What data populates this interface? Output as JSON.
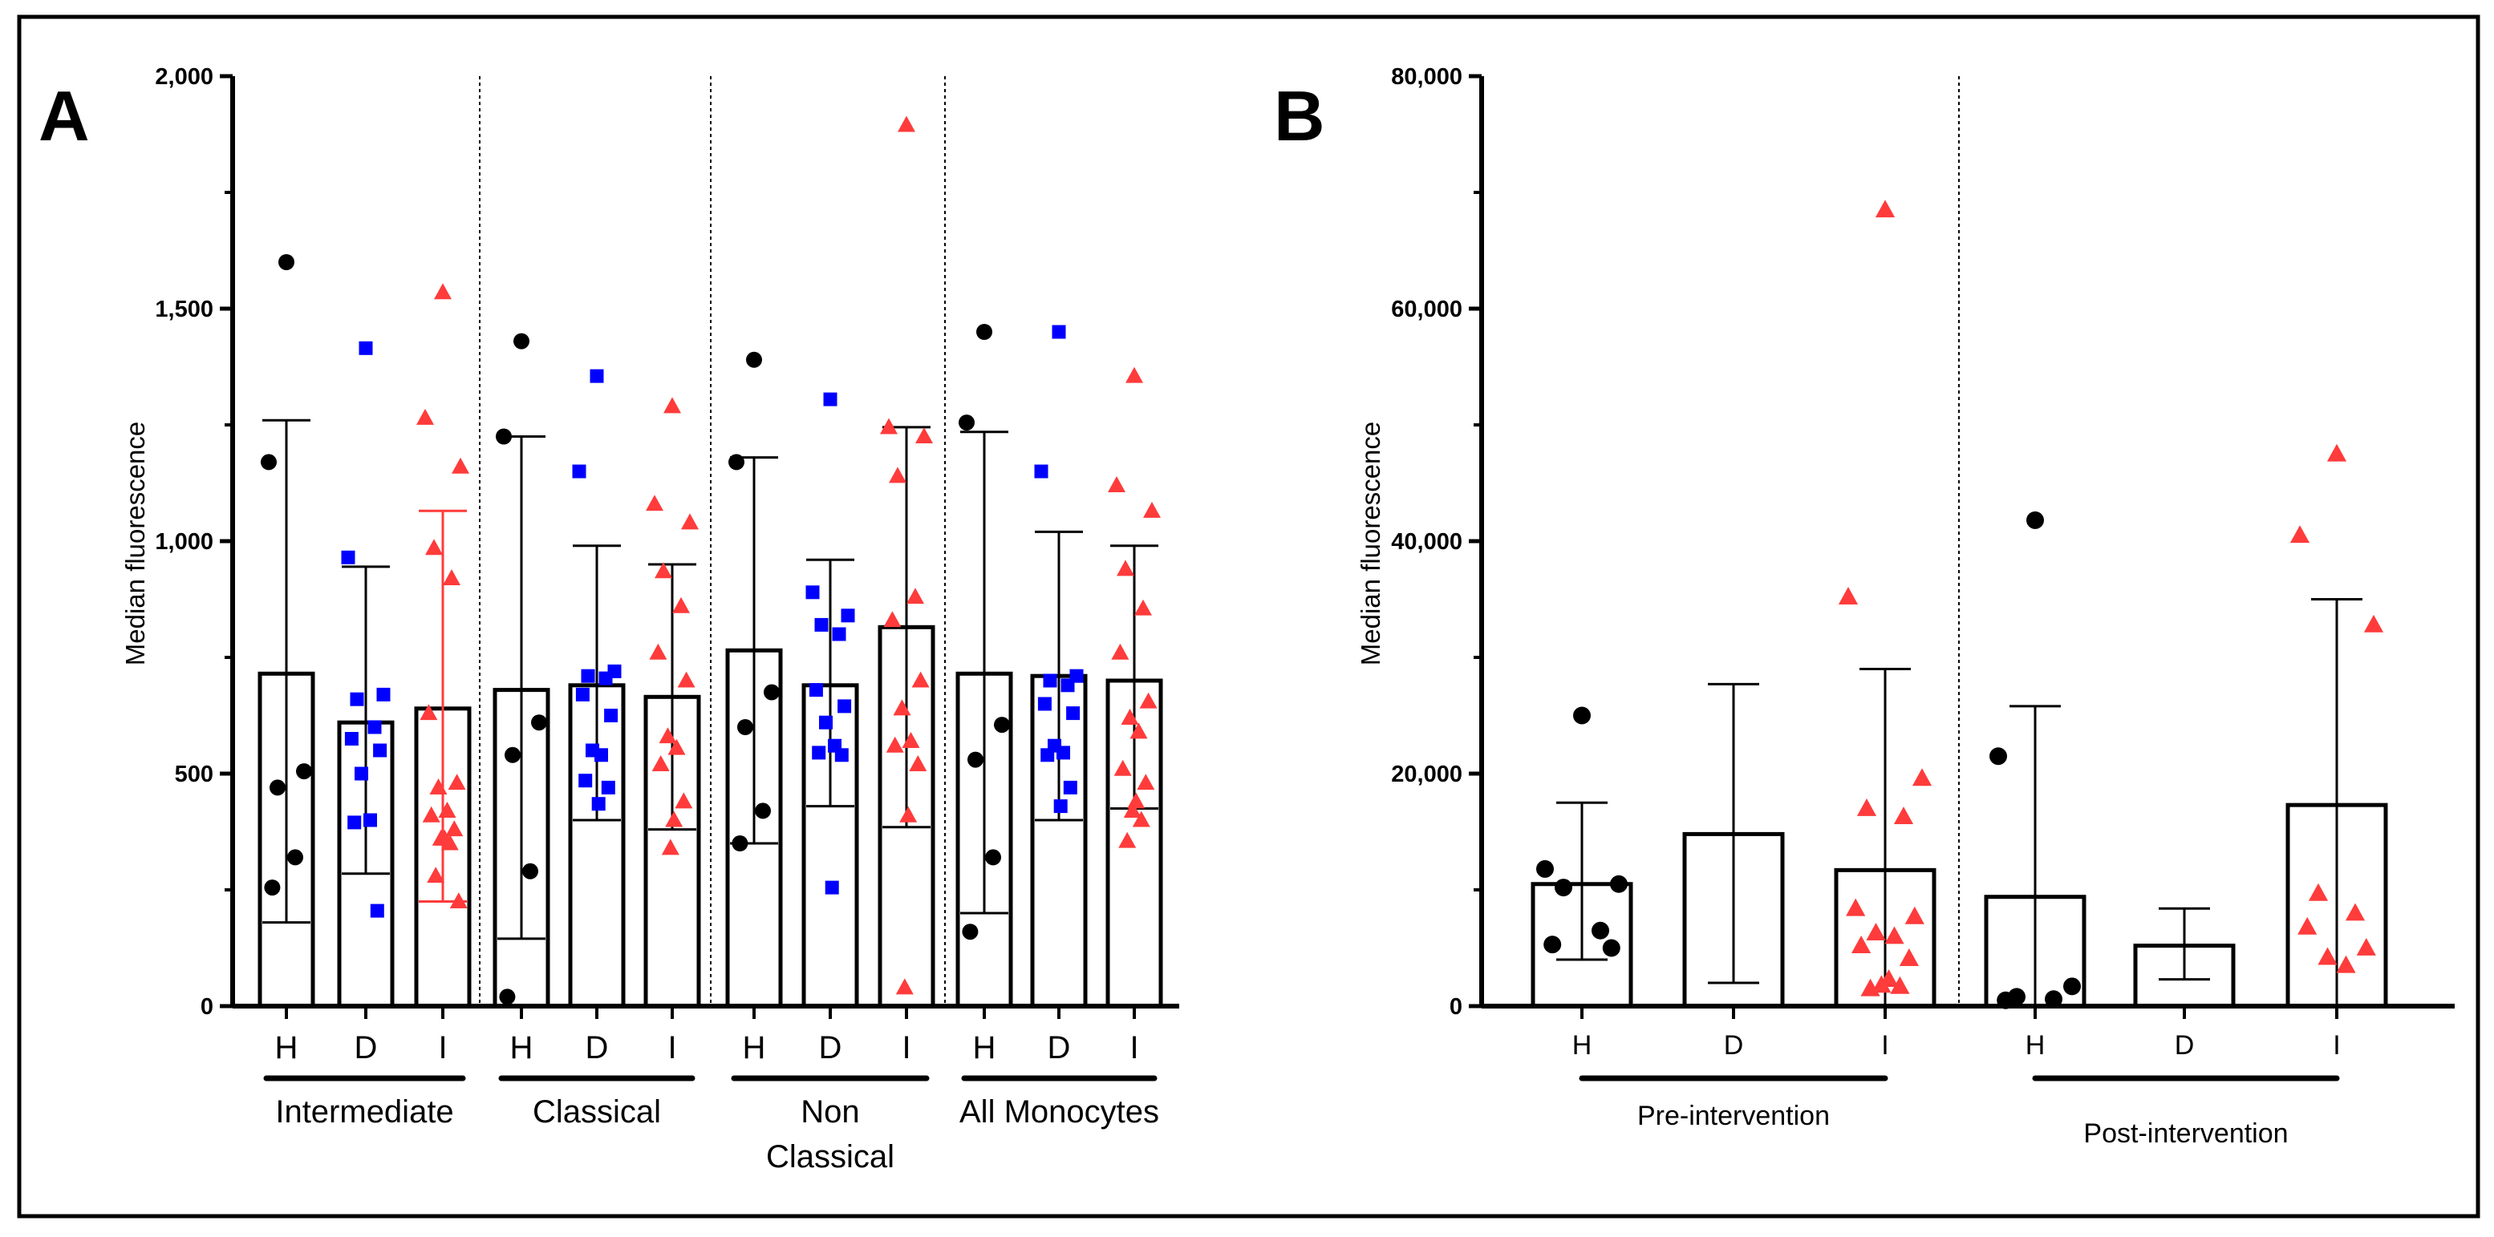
{
  "colors": {
    "H": "#000000",
    "D": "#0000ff",
    "I": "#ff3b3b",
    "axis": "#000000"
  },
  "chart_data": [
    {
      "panel": "A",
      "type": "bar",
      "title": "",
      "ylabel": "Median fluorescence",
      "ylim": [
        0,
        2000
      ],
      "yticks": [
        0,
        500,
        1000,
        1500,
        2000
      ],
      "ytick_labels": [
        "0",
        "500",
        "1,000",
        "1,500",
        "2,000"
      ],
      "groups": [
        {
          "label": "Intermediate",
          "label_lines": [
            "Intermediate"
          ],
          "bars": [
            {
              "cat": "H",
              "mean": 715,
              "lo": 180,
              "hi": 1260,
              "points": [
                1600,
                1170,
                505,
                470,
                320,
                255
              ]
            },
            {
              "cat": "D",
              "mean": 610,
              "lo": 285,
              "hi": 945,
              "points": [
                1415,
                965,
                670,
                660,
                600,
                575,
                550,
                500,
                400,
                395,
                205
              ]
            },
            {
              "cat": "I",
              "mean": 640,
              "lo": 225,
              "hi": 1065,
              "points": [
                1535,
                1265,
                1160,
                985,
                920,
                630,
                480,
                470,
                420,
                410,
                380,
                360,
                360,
                350,
                280,
                225
              ]
            }
          ]
        },
        {
          "label": "Classical",
          "label_lines": [
            "Classical"
          ],
          "bars": [
            {
              "cat": "H",
              "mean": 680,
              "lo": 145,
              "hi": 1225,
              "points": [
                1430,
                1225,
                610,
                540,
                290,
                20
              ]
            },
            {
              "cat": "D",
              "mean": 690,
              "lo": 400,
              "hi": 990,
              "points": [
                1355,
                1150,
                720,
                710,
                705,
                670,
                625,
                550,
                540,
                485,
                470,
                435
              ]
            },
            {
              "cat": "I",
              "mean": 665,
              "lo": 380,
              "hi": 950,
              "points": [
                1290,
                1080,
                1040,
                935,
                860,
                760,
                700,
                580,
                555,
                520,
                440,
                400,
                340
              ]
            }
          ]
        },
        {
          "label": "Non Classical",
          "label_lines": [
            "Non",
            "Classical"
          ],
          "bars": [
            {
              "cat": "H",
              "mean": 765,
              "lo": 350,
              "hi": 1180,
              "points": [
                1390,
                1170,
                675,
                600,
                420,
                350
              ]
            },
            {
              "cat": "D",
              "mean": 690,
              "lo": 430,
              "hi": 960,
              "points": [
                1305,
                890,
                840,
                820,
                800,
                680,
                645,
                610,
                560,
                545,
                540,
                255
              ]
            },
            {
              "cat": "I",
              "mean": 815,
              "lo": 385,
              "hi": 1245,
              "points": [
                1895,
                1245,
                1225,
                1140,
                880,
                830,
                700,
                640,
                570,
                560,
                520,
                410,
                40
              ]
            }
          ]
        },
        {
          "label": "All Monocytes",
          "label_lines": [
            "All Monocytes"
          ],
          "bars": [
            {
              "cat": "H",
              "mean": 715,
              "lo": 200,
              "hi": 1235,
              "points": [
                1450,
                1255,
                605,
                530,
                320,
                160
              ]
            },
            {
              "cat": "D",
              "mean": 710,
              "lo": 400,
              "hi": 1020,
              "points": [
                1450,
                1150,
                710,
                700,
                690,
                650,
                630,
                560,
                545,
                540,
                470,
                430
              ]
            },
            {
              "cat": "I",
              "mean": 700,
              "lo": 425,
              "hi": 990,
              "points": [
                1355,
                1120,
                1065,
                940,
                855,
                760,
                655,
                620,
                590,
                510,
                480,
                440,
                420,
                400,
                355
              ]
            }
          ]
        }
      ]
    },
    {
      "panel": "B",
      "type": "bar",
      "title": "",
      "ylabel": "Median fluorescence",
      "ylim": [
        0,
        80000
      ],
      "yticks": [
        0,
        20000,
        40000,
        60000,
        80000
      ],
      "ytick_labels": [
        "0",
        "20,000",
        "40,000",
        "60,000",
        "80,000"
      ],
      "groups": [
        {
          "label": "Pre-intervention",
          "label_lines": [
            "Pre-intervention"
          ],
          "bars": [
            {
              "cat": "H",
              "mean": 10500,
              "lo": 4000,
              "hi": 17500,
              "points": [
                25000,
                11800,
                10500,
                10200,
                6500,
                5300,
                5000
              ]
            },
            {
              "cat": "D",
              "mean": 14800,
              "lo": 2000,
              "hi": 27700,
              "points": []
            },
            {
              "cat": "I",
              "mean": 11700,
              "lo": 0,
              "hi": 29000,
              "points": [
                68500,
                35200,
                19600,
                17000,
                16300,
                8400,
                7700,
                6300,
                6000,
                5200,
                4100,
                2300,
                1800,
                1700,
                1500
              ]
            }
          ]
        },
        {
          "label": "Post-intervention",
          "label_lines": [
            "Post-intervention"
          ],
          "bars": [
            {
              "cat": "H",
              "mean": 9400,
              "lo": 0,
              "hi": 25800,
              "points": [
                41800,
                21500,
                1700,
                800,
                600,
                500
              ]
            },
            {
              "cat": "D",
              "mean": 5200,
              "lo": 2300,
              "hi": 8400,
              "points": []
            },
            {
              "cat": "I",
              "mean": 17300,
              "lo": 0,
              "hi": 35000,
              "points": [
                47500,
                40500,
                32800,
                9700,
                8000,
                6800,
                5000,
                4200,
                3500
              ]
            }
          ]
        }
      ]
    }
  ]
}
